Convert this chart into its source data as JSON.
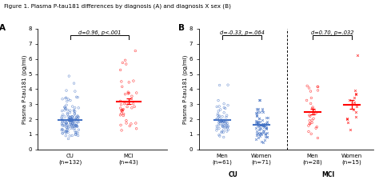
{
  "title": "Figure 1. Plasma P-tau181 differences by diagnosis (A) and diagnosis X sex (B)",
  "panel_A": {
    "label": "A",
    "groups": [
      "CU\n(n=132)",
      "MCI\n(n=43)"
    ],
    "colors": [
      "#4472C4",
      "#FF0000"
    ],
    "means": [
      2.05,
      3.25
    ],
    "ylim": [
      0,
      8
    ],
    "yticks": [
      0,
      1,
      2,
      3,
      4,
      5,
      6,
      7,
      8
    ],
    "ylabel": "Plasma P-tau181 (pg/ml)",
    "annotation": "d=0.96, p<.001",
    "n_CU": 132,
    "n_MCI": 43
  },
  "panel_B": {
    "label": "B",
    "groups": [
      "Men\n(n=61)",
      "Women\n(n=71)",
      "Men\n(n=28)",
      "Women\n(n=15)"
    ],
    "colors": [
      "#4472C4",
      "#4472C4",
      "#FF0000",
      "#FF0000"
    ],
    "markers": [
      "o",
      "x",
      "o",
      "x"
    ],
    "means": [
      1.85,
      1.6,
      2.45,
      2.8
    ],
    "ylim": [
      0,
      8
    ],
    "yticks": [
      0,
      1,
      2,
      3,
      4,
      5,
      6,
      7,
      8
    ],
    "ylabel": "Plasma P-tau181 (pg/ml)",
    "annotation_cu": "d=-0.33, p=.064",
    "annotation_mci": "d=0.70, p=.032",
    "xlabel_cu": "CU",
    "xlabel_mci": "MCI",
    "n_men_cu": 61,
    "n_women_cu": 71,
    "n_men_mci": 28,
    "n_women_mci": 15
  }
}
